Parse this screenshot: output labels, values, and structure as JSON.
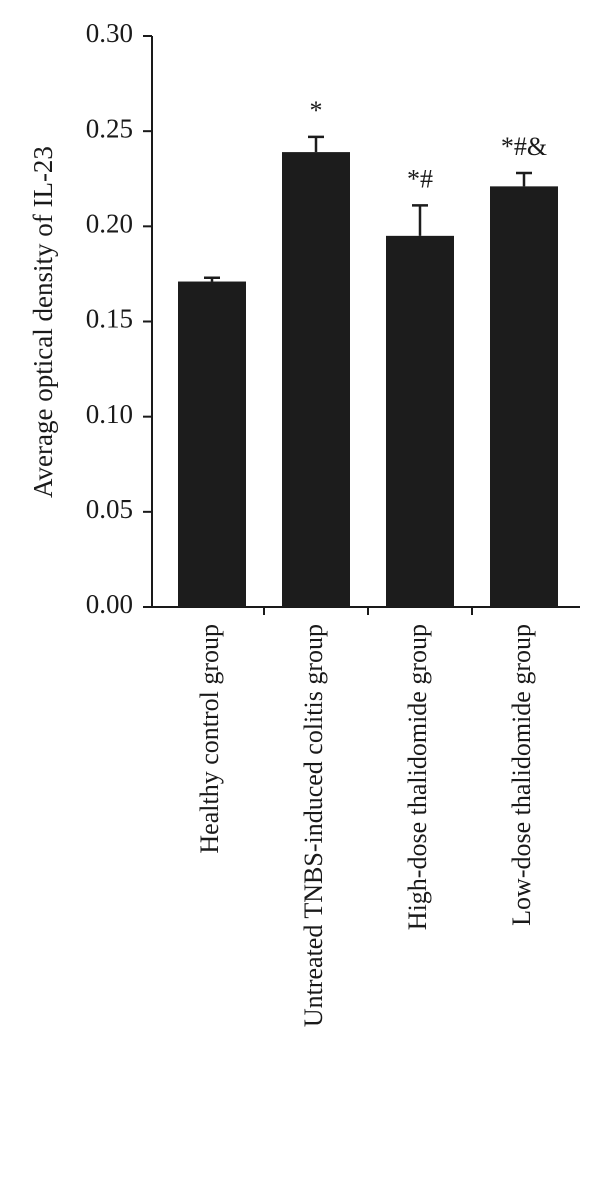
{
  "chart_data": {
    "type": "bar",
    "y_label": "Average optical density of IL-23",
    "categories": [
      "Healthy control group",
      "Untreated TNBS-induced colitis group",
      "High-dose thalidomide group",
      "Low-dose thalidomide group"
    ],
    "values": [
      0.171,
      0.239,
      0.195,
      0.221
    ],
    "errors": [
      0.002,
      0.008,
      0.016,
      0.007
    ],
    "annotations": [
      null,
      "*",
      "*#",
      "*#&"
    ],
    "color": "#1c1c1c",
    "ylim": [
      0,
      0.3
    ],
    "yticks": [
      {
        "value": 0,
        "label": "0.00"
      },
      {
        "value": 0.05,
        "label": "0.05"
      },
      {
        "value": 0.1,
        "label": "0.10"
      },
      {
        "value": 0.15,
        "label": "0.15"
      },
      {
        "value": 0.2,
        "label": "0.20"
      },
      {
        "value": 0.25,
        "label": "0.25"
      },
      {
        "value": 0.3,
        "label": "0.30"
      }
    ]
  }
}
